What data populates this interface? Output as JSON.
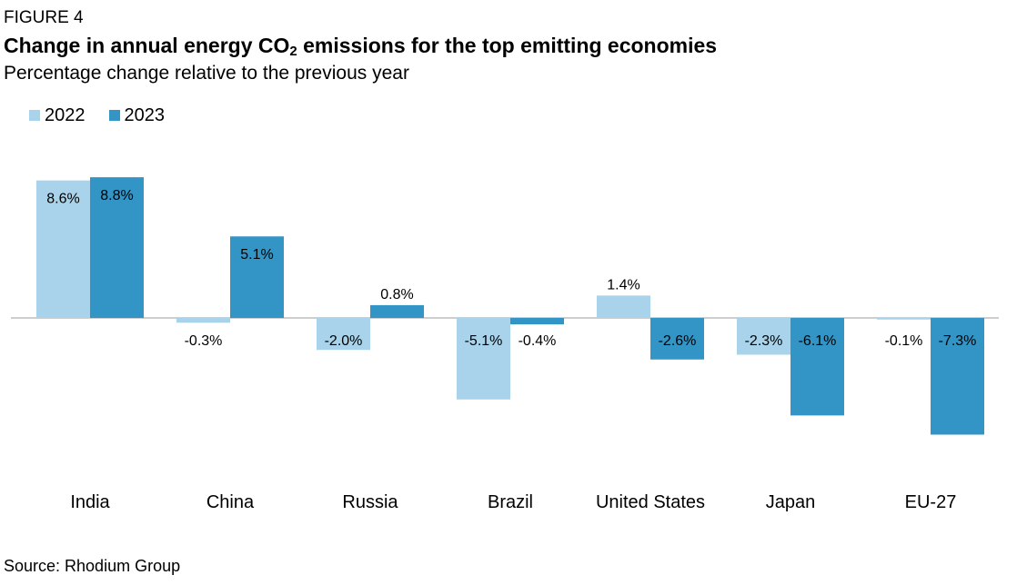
{
  "header": {
    "figure_label": "FIGURE 4",
    "title_pre": "Change in annual energy CO",
    "title_sub": "2",
    "title_post": " emissions for the top emitting economies",
    "subtitle": "Percentage change relative to the previous year"
  },
  "footer": {
    "source": "Source: Rhodium Group"
  },
  "colors": {
    "series_2022": "#a9d3ea",
    "series_2023": "#3394c6",
    "zero_line": "#bdbdbd"
  },
  "chart_data": {
    "type": "bar",
    "title": "Change in annual energy CO2 emissions for the top emitting economies",
    "subtitle": "Percentage change relative to the previous year",
    "categories": [
      "India",
      "China",
      "Russia",
      "Brazil",
      "United States",
      "Japan",
      "EU-27"
    ],
    "series": [
      {
        "name": "2022",
        "values": [
          8.6,
          -0.3,
          -2.0,
          -5.1,
          1.4,
          -2.3,
          -0.1
        ],
        "labels": [
          "8.6%",
          "-0.3%",
          "-2.0%",
          "-5.1%",
          "1.4%",
          "-2.3%",
          "-0.1%"
        ]
      },
      {
        "name": "2023",
        "values": [
          8.8,
          5.1,
          0.8,
          -0.4,
          -2.6,
          -6.1,
          -7.3
        ],
        "labels": [
          "8.8%",
          "5.1%",
          "0.8%",
          "-0.4%",
          "-2.6%",
          "-6.1%",
          "-7.3%"
        ]
      }
    ],
    "xlabel": "",
    "ylabel": "",
    "ylim": [
      -10,
      11
    ],
    "grid": false,
    "legend": "top-left"
  }
}
